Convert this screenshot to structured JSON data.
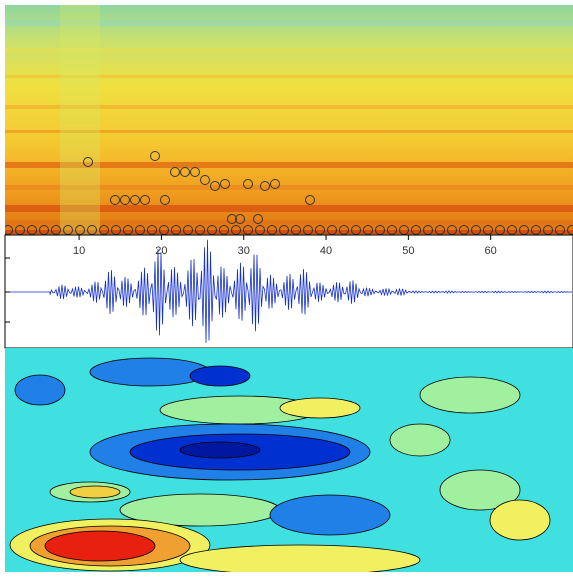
{
  "chart_data": {
    "type": "spectro-wave",
    "xlim": [
      1,
      70
    ],
    "xticks": [
      10,
      20,
      30,
      40,
      50,
      60
    ]
  }
}
